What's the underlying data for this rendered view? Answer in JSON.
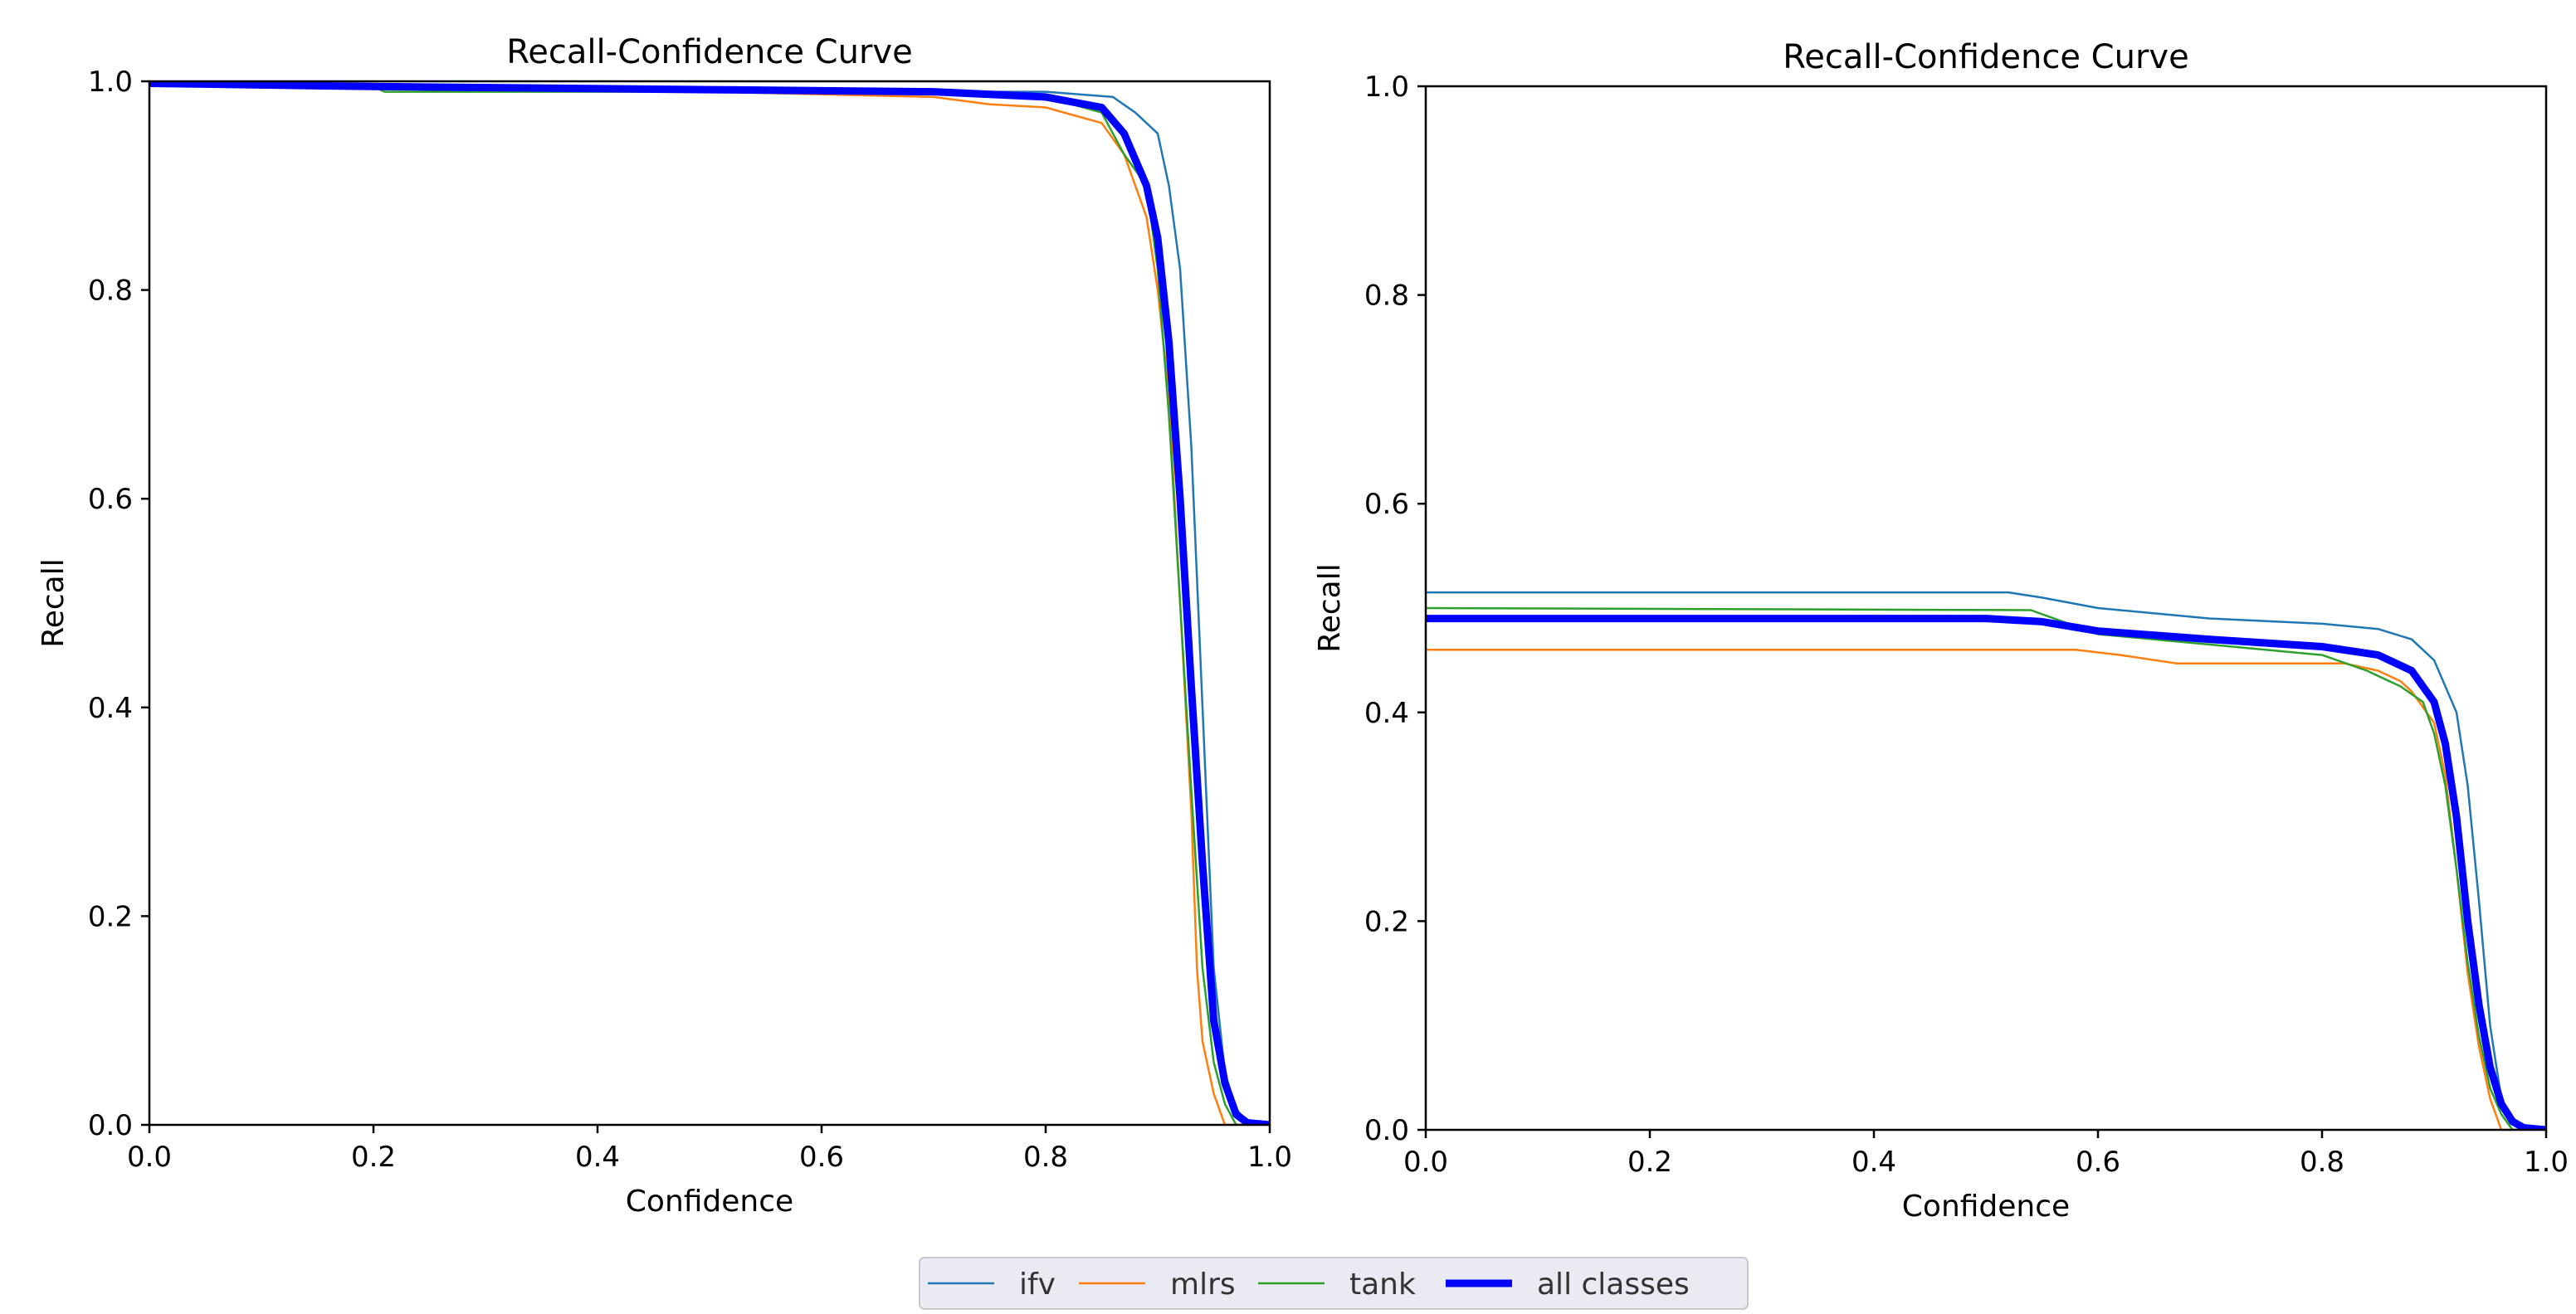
{
  "legend": {
    "entries": [
      {
        "label": "ifv",
        "color": "#1f77b4",
        "thick": false
      },
      {
        "label": "mlrs",
        "color": "#ff7f0e",
        "thick": false
      },
      {
        "label": "tank",
        "color": "#2ca02c",
        "thick": false
      },
      {
        "label": "all classes",
        "color": "#0000ff",
        "thick": true
      }
    ]
  },
  "chart_data": [
    {
      "type": "line",
      "title": "Recall-Confidence Curve",
      "xlabel": "Confidence",
      "ylabel": "Recall",
      "xlim": [
        0,
        1
      ],
      "ylim": [
        0,
        1
      ],
      "xticks": [
        "0.0",
        "0.2",
        "0.4",
        "0.6",
        "0.8",
        "1.0"
      ],
      "yticks": [
        "0.0",
        "0.2",
        "0.4",
        "0.6",
        "0.8",
        "1.0"
      ],
      "grid": false,
      "series": [
        {
          "name": "ifv",
          "color": "#1f77b4",
          "x": [
            0,
            0.2,
            0.5,
            0.7,
            0.8,
            0.86,
            0.88,
            0.9,
            0.91,
            0.92,
            0.93,
            0.94,
            0.95,
            0.96,
            0.97,
            0.98,
            1.0
          ],
          "y": [
            1.0,
            0.995,
            0.993,
            0.99,
            0.99,
            0.985,
            0.97,
            0.95,
            0.9,
            0.82,
            0.65,
            0.4,
            0.15,
            0.05,
            0.015,
            0.003,
            0
          ]
        },
        {
          "name": "mlrs",
          "color": "#ff7f0e",
          "x": [
            0,
            0.2,
            0.5,
            0.7,
            0.75,
            0.8,
            0.85,
            0.87,
            0.89,
            0.9,
            0.91,
            0.92,
            0.93,
            0.935,
            0.94,
            0.95,
            0.96,
            1.0
          ],
          "y": [
            1.0,
            0.995,
            0.99,
            0.985,
            0.978,
            0.975,
            0.96,
            0.93,
            0.87,
            0.8,
            0.7,
            0.5,
            0.3,
            0.15,
            0.08,
            0.03,
            0,
            0
          ]
        },
        {
          "name": "tank",
          "color": "#2ca02c",
          "x": [
            0,
            0.2,
            0.21,
            0.5,
            0.7,
            0.8,
            0.85,
            0.87,
            0.89,
            0.9,
            0.91,
            0.92,
            0.93,
            0.94,
            0.95,
            0.96,
            0.97,
            1.0
          ],
          "y": [
            1.0,
            0.995,
            0.99,
            0.99,
            0.99,
            0.985,
            0.97,
            0.93,
            0.9,
            0.82,
            0.68,
            0.5,
            0.32,
            0.15,
            0.06,
            0.02,
            0,
            0
          ]
        },
        {
          "name": "all classes",
          "color": "#0000ff",
          "x": [
            0,
            0.2,
            0.5,
            0.7,
            0.8,
            0.85,
            0.87,
            0.89,
            0.9,
            0.91,
            0.92,
            0.93,
            0.94,
            0.95,
            0.96,
            0.97,
            0.98,
            1.0
          ],
          "y": [
            0.998,
            0.995,
            0.992,
            0.99,
            0.985,
            0.975,
            0.95,
            0.9,
            0.85,
            0.75,
            0.6,
            0.42,
            0.25,
            0.1,
            0.04,
            0.01,
            0.002,
            0
          ]
        }
      ]
    },
    {
      "type": "line",
      "title": "Recall-Confidence Curve",
      "xlabel": "Confidence",
      "ylabel": "Recall",
      "xlim": [
        0,
        1
      ],
      "ylim": [
        0,
        1
      ],
      "xticks": [
        "0.0",
        "0.2",
        "0.4",
        "0.6",
        "0.8",
        "1.0"
      ],
      "yticks": [
        "0.0",
        "0.2",
        "0.4",
        "0.6",
        "0.8",
        "1.0"
      ],
      "grid": false,
      "series": [
        {
          "name": "ifv",
          "color": "#1f77b4",
          "x": [
            0,
            0.52,
            0.55,
            0.6,
            0.7,
            0.8,
            0.85,
            0.88,
            0.9,
            0.92,
            0.93,
            0.94,
            0.95,
            0.96,
            0.97,
            1.0
          ],
          "y": [
            0.515,
            0.515,
            0.51,
            0.5,
            0.49,
            0.485,
            0.48,
            0.47,
            0.45,
            0.4,
            0.33,
            0.22,
            0.1,
            0.03,
            0.005,
            0
          ]
        },
        {
          "name": "mlrs",
          "color": "#ff7f0e",
          "x": [
            0,
            0.58,
            0.62,
            0.67,
            0.82,
            0.85,
            0.87,
            0.88,
            0.9,
            0.91,
            0.92,
            0.93,
            0.94,
            0.95,
            0.96,
            1.0
          ],
          "y": [
            0.46,
            0.46,
            0.455,
            0.447,
            0.447,
            0.44,
            0.43,
            0.42,
            0.39,
            0.34,
            0.25,
            0.15,
            0.08,
            0.03,
            0,
            0
          ]
        },
        {
          "name": "tank",
          "color": "#2ca02c",
          "x": [
            0,
            0.54,
            0.6,
            0.7,
            0.8,
            0.84,
            0.87,
            0.89,
            0.9,
            0.91,
            0.92,
            0.93,
            0.94,
            0.95,
            0.96,
            0.97,
            1.0
          ],
          "y": [
            0.5,
            0.498,
            0.475,
            0.465,
            0.455,
            0.44,
            0.425,
            0.41,
            0.38,
            0.33,
            0.25,
            0.16,
            0.09,
            0.04,
            0.015,
            0,
            0
          ]
        },
        {
          "name": "all classes",
          "color": "#0000ff",
          "x": [
            0,
            0.5,
            0.55,
            0.6,
            0.7,
            0.8,
            0.85,
            0.88,
            0.9,
            0.91,
            0.92,
            0.93,
            0.94,
            0.95,
            0.96,
            0.97,
            0.98,
            1.0
          ],
          "y": [
            0.49,
            0.49,
            0.487,
            0.478,
            0.47,
            0.463,
            0.455,
            0.44,
            0.41,
            0.37,
            0.3,
            0.2,
            0.12,
            0.06,
            0.025,
            0.008,
            0.002,
            0
          ]
        }
      ]
    }
  ]
}
